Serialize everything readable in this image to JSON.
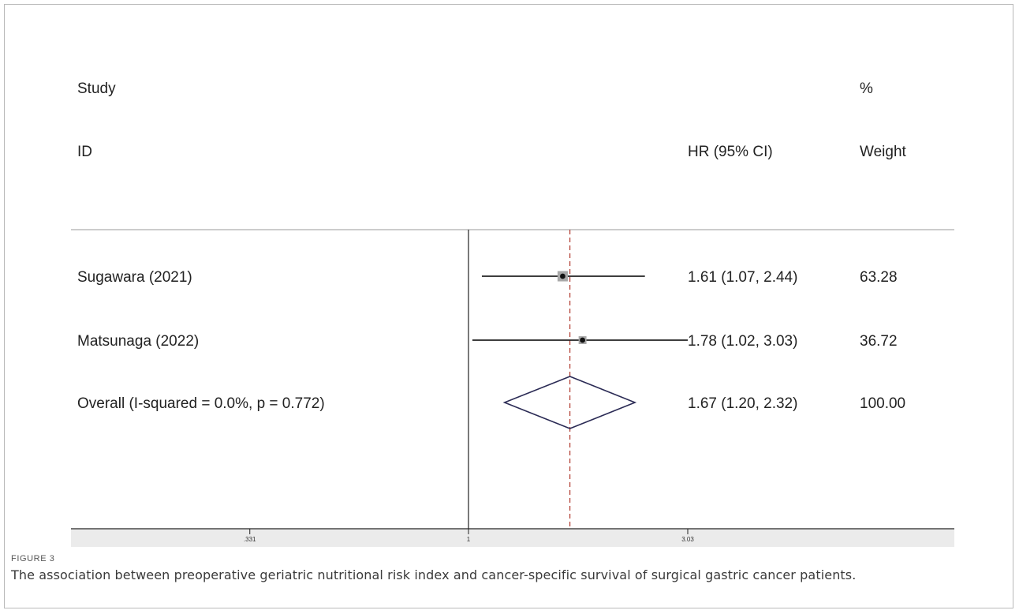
{
  "chart_data": {
    "type": "forest",
    "header": {
      "study_line1": "Study",
      "study_line2": "ID",
      "effect_label": "HR (95% CI)",
      "weight_line1": "%",
      "weight_line2": "Weight"
    },
    "studies": [
      {
        "label": "Sugawara (2021)",
        "hr": 1.61,
        "lower": 1.07,
        "upper": 2.44,
        "ci_text": "1.61 (1.07, 2.44)",
        "weight_text": "63.28",
        "weight": 63.28
      },
      {
        "label": "Matsunaga (2022)",
        "hr": 1.78,
        "lower": 1.02,
        "upper": 3.03,
        "ci_text": "1.78 (1.02, 3.03)",
        "weight_text": "36.72",
        "weight": 36.72
      }
    ],
    "overall": {
      "label": "Overall  (I-squared = 0.0%, p = 0.772)",
      "hr": 1.67,
      "lower": 1.2,
      "upper": 2.32,
      "ci_text": "1.67 (1.20, 2.32)",
      "weight_text": "100.00"
    },
    "x_scale": "log",
    "x_ticks": [
      {
        "value": 0.331,
        "label": ".331"
      },
      {
        "value": 1,
        "label": "1"
      },
      {
        "value": 3.03,
        "label": "3.03"
      }
    ],
    "reference_line": 1
  },
  "caption": {
    "label": "FIGURE 3",
    "text": "The association between preoperative geriatric nutritional risk index and cancer-specific survival of surgical gastric cancer patients."
  }
}
